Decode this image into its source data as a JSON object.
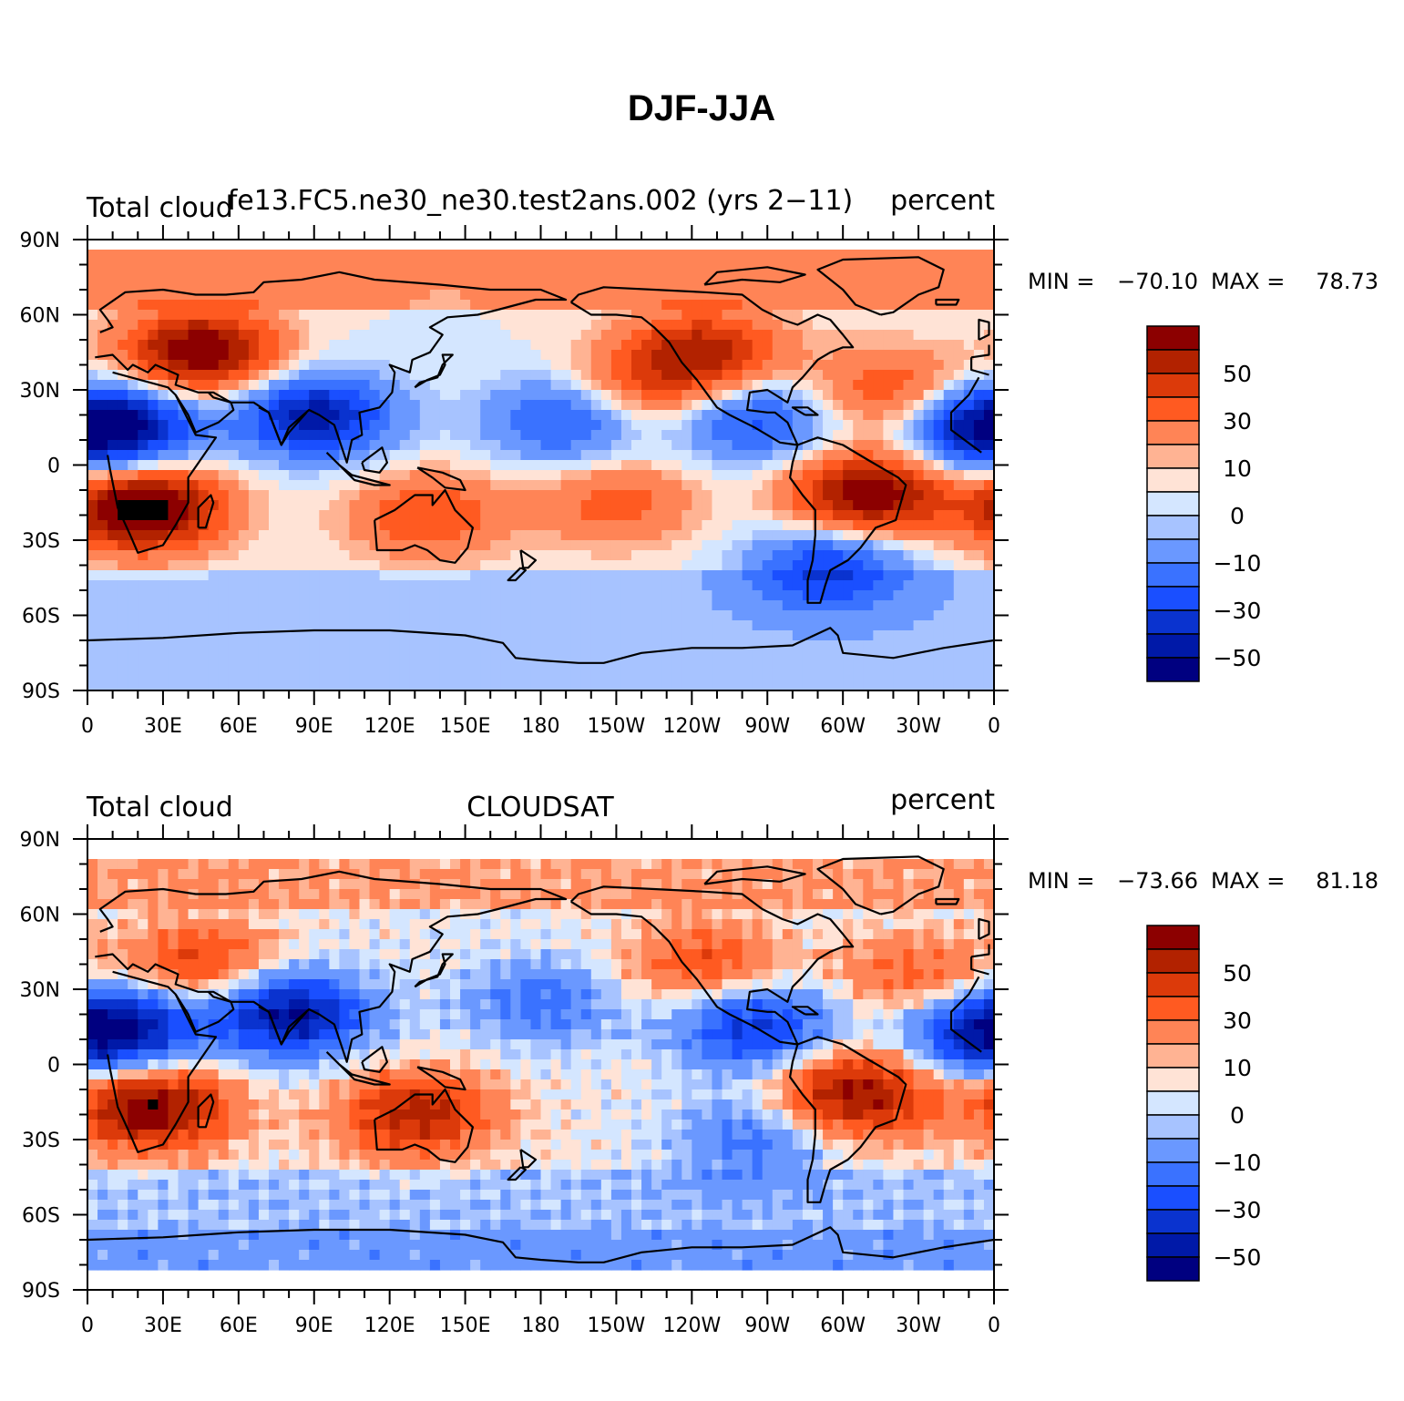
{
  "figure_title": "DJF-JJA",
  "colors": {
    "levels": [
      "#000080",
      "#0019a8",
      "#0a33cf",
      "#1a4fff",
      "#3a72ff",
      "#6a98ff",
      "#a7c3ff",
      "#d4e6ff",
      "#ffe3d6",
      "#ffb393",
      "#ff8456",
      "#ff5a21",
      "#dc3a0a",
      "#b22200",
      "#8c0000"
    ],
    "coast": "#000000",
    "missing": "#ffffff"
  },
  "colorbar": {
    "labels": [
      "50",
      "30",
      "10",
      "0",
      "−10",
      "−30",
      "−50"
    ]
  },
  "panels": [
    {
      "left_title": "Total cloud",
      "center_title": "fe13.FC5.ne30_ne30.test2ans.002 (yrs 2−11)",
      "right_title": "percent",
      "min_label": "MIN =",
      "min_value": "−70.10",
      "max_label": "MAX =",
      "max_value": "78.73"
    },
    {
      "left_title": "Total cloud",
      "center_title": "CLOUDSAT",
      "right_title": "percent",
      "min_label": "MIN =",
      "min_value": "−73.66",
      "max_label": "MAX =",
      "max_value": "81.18"
    }
  ],
  "axes": {
    "lat_labels": [
      "90N",
      "60N",
      "30N",
      "0",
      "30S",
      "60S",
      "90S"
    ],
    "lon_labels": [
      "0",
      "30E",
      "60E",
      "90E",
      "120E",
      "150E",
      "180",
      "150W",
      "120W",
      "90W",
      "60W",
      "30W",
      "0"
    ]
  },
  "chart_data": [
    {
      "type": "heatmap",
      "title": "fe13.FC5.ne30_ne30.test2ans.002 (yrs 2−11)",
      "variable": "Total cloud",
      "units": "percent",
      "contour_levels": [
        -60,
        -50,
        -40,
        -30,
        -20,
        -10,
        -5,
        0,
        5,
        10,
        20,
        30,
        40,
        50,
        60
      ],
      "min": -70.1,
      "max": 78.73,
      "regions": [
        {
          "lon": 45,
          "lat": 45,
          "value": 62
        },
        {
          "lon": 22,
          "lat": -17,
          "value": 70
        },
        {
          "lon": 310,
          "lat": -12,
          "value": 60
        },
        {
          "lon": 245,
          "lat": 45,
          "value": 45
        },
        {
          "lon": 135,
          "lat": -20,
          "value": 30
        },
        {
          "lon": 210,
          "lat": -15,
          "value": 25
        },
        {
          "lon": 220,
          "lat": 30,
          "value": 25
        },
        {
          "lon": 320,
          "lat": 30,
          "value": 30
        },
        {
          "lon": 90,
          "lat": 20,
          "value": -55
        },
        {
          "lon": 15,
          "lat": 15,
          "value": -45
        },
        {
          "lon": 190,
          "lat": 18,
          "value": -35
        },
        {
          "lon": 355,
          "lat": 15,
          "value": -45
        },
        {
          "lon": 265,
          "lat": 18,
          "value": -35
        },
        {
          "lon": 295,
          "lat": -40,
          "value": -40
        }
      ]
    },
    {
      "type": "heatmap",
      "title": "CLOUDSAT",
      "variable": "Total cloud",
      "units": "percent",
      "contour_levels": [
        -60,
        -50,
        -40,
        -30,
        -20,
        -10,
        -5,
        0,
        5,
        10,
        20,
        30,
        40,
        50,
        60
      ],
      "min": -73.66,
      "max": 81.18,
      "regions": [
        {
          "lon": 25,
          "lat": -17,
          "value": 60
        },
        {
          "lon": 305,
          "lat": -12,
          "value": 55
        },
        {
          "lon": 130,
          "lat": -20,
          "value": 45
        },
        {
          "lon": 45,
          "lat": 40,
          "value": 35
        },
        {
          "lon": 245,
          "lat": 40,
          "value": 30
        },
        {
          "lon": 330,
          "lat": 35,
          "value": 25
        },
        {
          "lon": 80,
          "lat": 20,
          "value": -60
        },
        {
          "lon": 15,
          "lat": 15,
          "value": -45
        },
        {
          "lon": 265,
          "lat": 15,
          "value": -45
        },
        {
          "lon": 355,
          "lat": 12,
          "value": -40
        },
        {
          "lon": 180,
          "lat": 25,
          "value": -25
        },
        {
          "lon": 265,
          "lat": -30,
          "value": -25
        }
      ]
    }
  ]
}
